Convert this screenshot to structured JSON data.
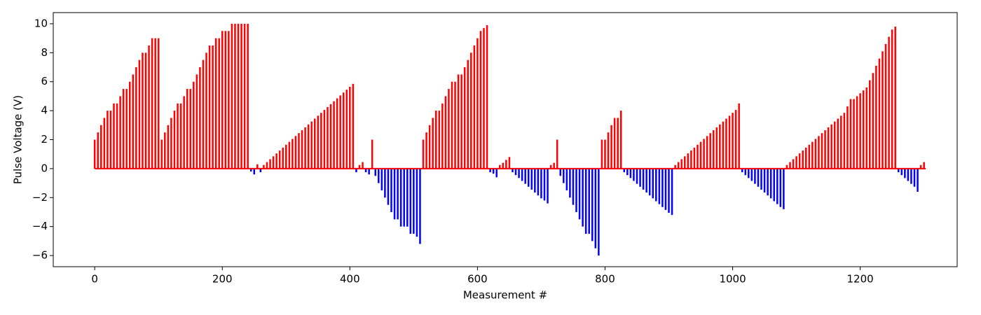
{
  "chart_data": {
    "type": "stem_bar",
    "xlabel": "Measurement #",
    "ylabel": "Pulse Voltage (V)",
    "positive_color": "red",
    "negative_color": "blue",
    "baseline_color": "red",
    "xlim": [
      -65,
      1352
    ],
    "ylim": [
      -6.77,
      10.77
    ],
    "xticks": [
      0,
      200,
      400,
      600,
      800,
      1000,
      1200
    ],
    "yticks": [
      {
        "value": -6,
        "label": "−6"
      },
      {
        "value": -4,
        "label": "−4"
      },
      {
        "value": -2,
        "label": "−2"
      },
      0,
      2,
      4,
      6,
      8,
      10
    ],
    "x": [
      0,
      5,
      10,
      15,
      20,
      25,
      30,
      35,
      40,
      45,
      50,
      55,
      60,
      65,
      70,
      75,
      80,
      85,
      90,
      95,
      100,
      105,
      110,
      115,
      120,
      125,
      130,
      135,
      140,
      145,
      150,
      155,
      160,
      165,
      170,
      175,
      180,
      185,
      190,
      195,
      200,
      205,
      210,
      215,
      220,
      225,
      230,
      235,
      240,
      245,
      250,
      255,
      260,
      265,
      270,
      275,
      280,
      285,
      290,
      295,
      300,
      305,
      310,
      315,
      320,
      325,
      330,
      335,
      340,
      345,
      350,
      355,
      360,
      365,
      370,
      375,
      380,
      385,
      390,
      395,
      400,
      405,
      410,
      415,
      420,
      425,
      430,
      435,
      440,
      445,
      450,
      455,
      460,
      465,
      470,
      475,
      480,
      485,
      490,
      495,
      500,
      505,
      510,
      515,
      520,
      525,
      530,
      535,
      540,
      545,
      550,
      555,
      560,
      565,
      570,
      575,
      580,
      585,
      590,
      595,
      600,
      605,
      610,
      615,
      620,
      625,
      630,
      635,
      640,
      645,
      650,
      655,
      660,
      665,
      670,
      675,
      680,
      685,
      690,
      695,
      700,
      705,
      710,
      715,
      720,
      725,
      730,
      735,
      740,
      745,
      750,
      755,
      760,
      765,
      770,
      775,
      780,
      785,
      790,
      795,
      800,
      805,
      810,
      815,
      820,
      825,
      830,
      835,
      840,
      845,
      850,
      855,
      860,
      865,
      870,
      875,
      880,
      885,
      890,
      895,
      900,
      905,
      910,
      915,
      920,
      925,
      930,
      935,
      940,
      945,
      950,
      955,
      960,
      965,
      970,
      975,
      980,
      985,
      990,
      995,
      1000,
      1005,
      1010,
      1015,
      1020,
      1025,
      1030,
      1035,
      1040,
      1045,
      1050,
      1055,
      1060,
      1065,
      1070,
      1075,
      1080,
      1085,
      1090,
      1095,
      1100,
      1105,
      1110,
      1115,
      1120,
      1125,
      1130,
      1135,
      1140,
      1145,
      1150,
      1155,
      1160,
      1165,
      1170,
      1175,
      1180,
      1185,
      1190,
      1195,
      1200,
      1205,
      1210,
      1215,
      1220,
      1225,
      1230,
      1235,
      1240,
      1245,
      1250,
      1255,
      1260,
      1265,
      1270,
      1275,
      1280,
      1285,
      1290,
      1295,
      1300
    ],
    "values": [
      2,
      2.5,
      3,
      3.5,
      4,
      4,
      4.5,
      4.5,
      5,
      5.5,
      5.5,
      6,
      6.5,
      7,
      7.5,
      8,
      8,
      8.5,
      9,
      9,
      9,
      2,
      2.5,
      3,
      3.5,
      4,
      4.5,
      4.5,
      5,
      5.5,
      5.5,
      6,
      6.5,
      7,
      7.5,
      8,
      8.5,
      8.5,
      9,
      9,
      9.5,
      9.5,
      9.5,
      10,
      10,
      10,
      10,
      10,
      10,
      -0.2,
      -0.4,
      0.3,
      -0.25,
      0.25,
      0.45,
      0.65,
      0.85,
      1.05,
      1.25,
      1.45,
      1.65,
      1.85,
      2.05,
      2.25,
      2.45,
      2.65,
      2.85,
      3.05,
      3.25,
      3.45,
      3.65,
      3.85,
      4.05,
      4.25,
      4.45,
      4.65,
      4.85,
      5.05,
      5.25,
      5.45,
      5.65,
      5.85,
      -0.25,
      0.25,
      0.45,
      -0.25,
      -0.4,
      2,
      -0.5,
      -1,
      -1.5,
      -2,
      -2.5,
      -3,
      -3.5,
      -3.5,
      -4,
      -4,
      -4,
      -4.5,
      -4.5,
      -4.7,
      -5.2,
      2,
      2.5,
      3,
      3.5,
      4,
      4,
      4.5,
      5,
      5.5,
      6,
      6,
      6.5,
      6.5,
      7,
      7.5,
      8,
      8.5,
      9,
      9.5,
      9.7,
      9.9,
      -0.25,
      -0.35,
      -0.6,
      0.25,
      0.4,
      0.6,
      0.8,
      -0.25,
      -0.45,
      -0.65,
      -0.85,
      -1.05,
      -1.25,
      -1.45,
      -1.65,
      -1.85,
      -2.05,
      -2.2,
      -2.4,
      0.25,
      0.4,
      2,
      -0.5,
      -1,
      -1.5,
      -2,
      -2.5,
      -3,
      -3.5,
      -4,
      -4.5,
      -4.5,
      -5,
      -5.5,
      -6,
      2,
      2,
      2.5,
      3,
      3.5,
      3.5,
      4,
      -0.25,
      -0.45,
      -0.65,
      -0.85,
      -1.05,
      -1.25,
      -1.45,
      -1.65,
      -1.85,
      -2.05,
      -2.25,
      -2.45,
      -2.65,
      -2.85,
      -3.05,
      -3.2,
      0.25,
      0.45,
      0.65,
      0.85,
      1.05,
      1.25,
      1.45,
      1.65,
      1.85,
      2.05,
      2.25,
      2.45,
      2.65,
      2.85,
      3.05,
      3.25,
      3.45,
      3.65,
      3.85,
      4.05,
      4.5,
      -0.25,
      -0.45,
      -0.65,
      -0.85,
      -1.05,
      -1.25,
      -1.45,
      -1.65,
      -1.85,
      -2.05,
      -2.25,
      -2.45,
      -2.65,
      -2.8,
      0.25,
      0.45,
      0.65,
      0.85,
      1.05,
      1.25,
      1.45,
      1.65,
      1.85,
      2.05,
      2.25,
      2.45,
      2.65,
      2.85,
      3.05,
      3.25,
      3.45,
      3.65,
      3.85,
      4.3,
      4.8,
      4.8,
      5,
      5.2,
      5.4,
      5.6,
      6.1,
      6.6,
      7.1,
      7.6,
      8.1,
      8.6,
      9.1,
      9.6,
      9.8,
      -0.25,
      -0.45,
      -0.65,
      -0.85,
      -1.05,
      -1.25,
      -1.6,
      0.25,
      0.45
    ]
  }
}
